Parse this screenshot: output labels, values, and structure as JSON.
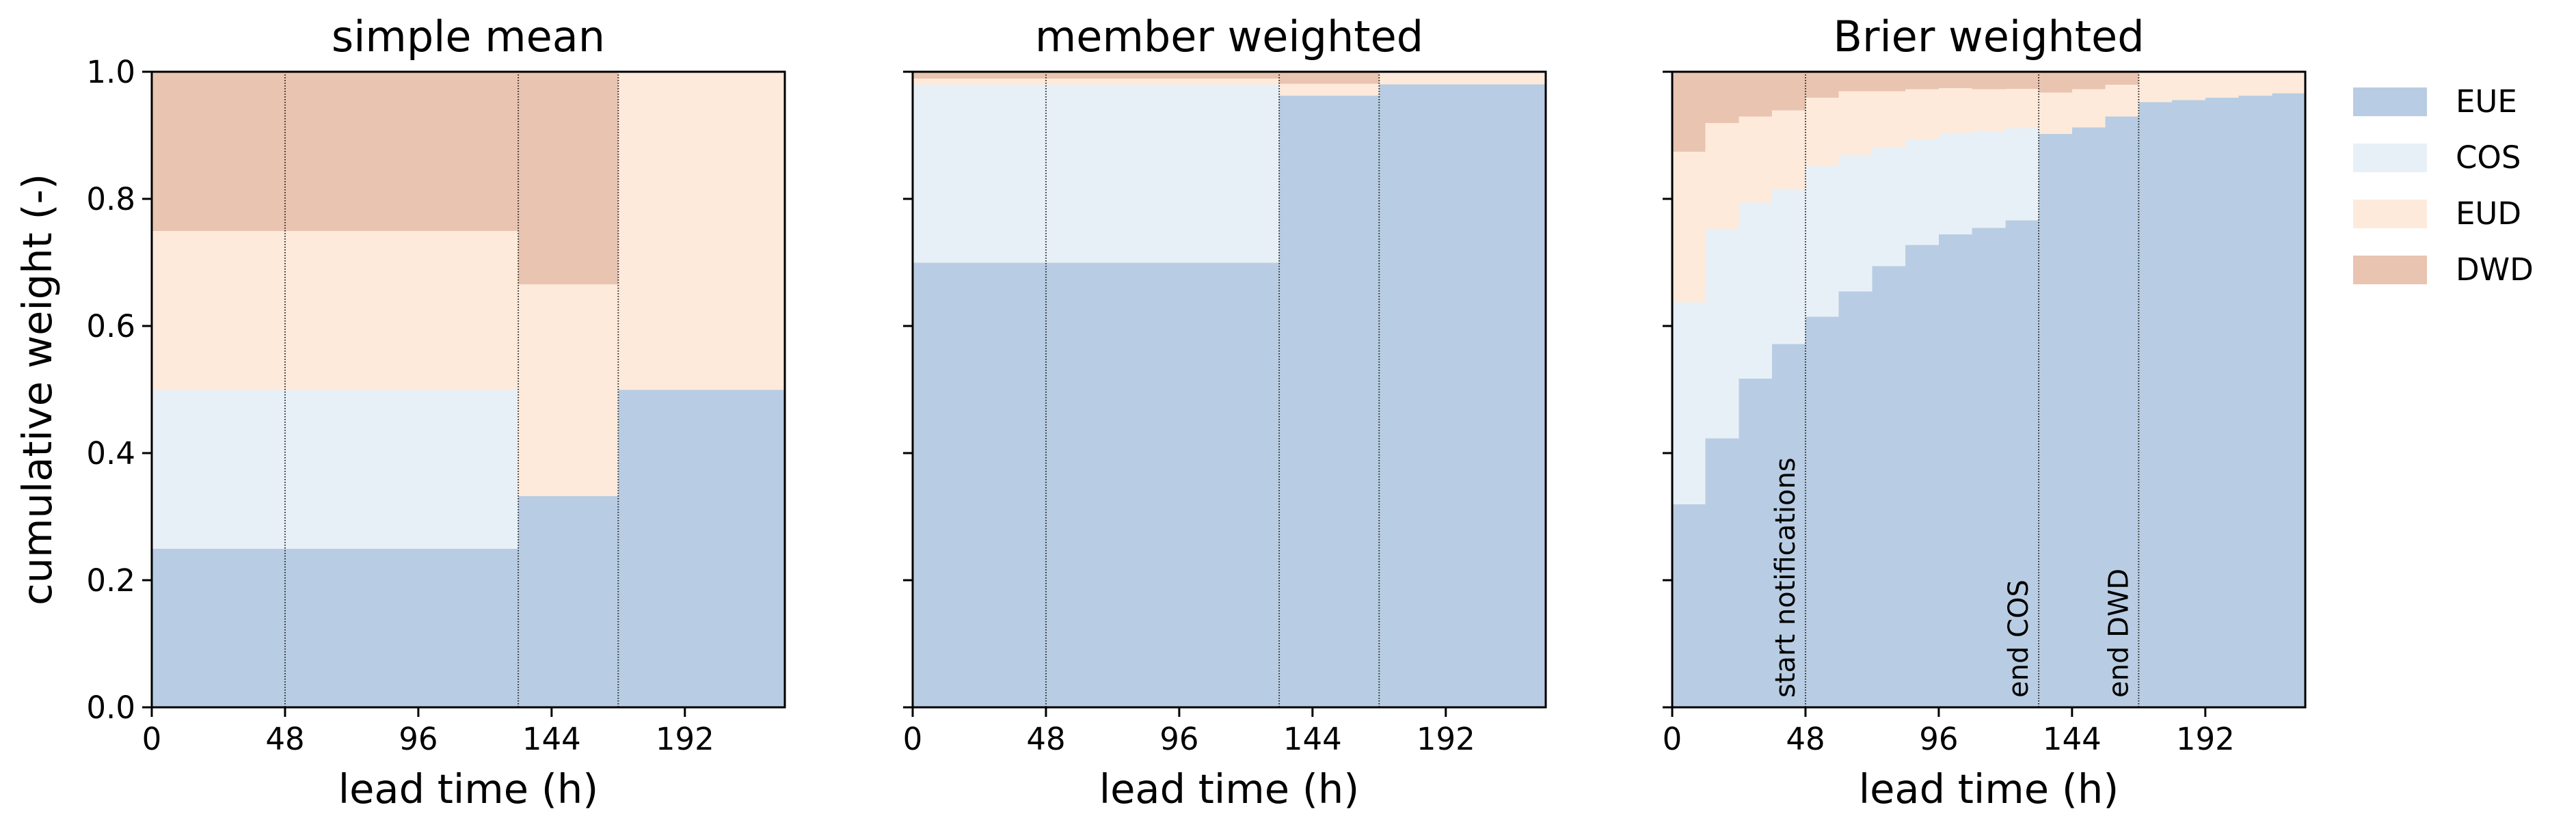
{
  "colors": {
    "EUE": "#b8cde3",
    "COS": "#e8f0f7",
    "EUD": "#fdeadb",
    "DWD": "#e9c4b1"
  },
  "legend": {
    "placement": "right",
    "entries": [
      "EUE",
      "COS",
      "EUD",
      "DWD"
    ]
  },
  "chart_data": [
    {
      "type": "area",
      "title": "simple mean",
      "xlabel": "lead time (h)",
      "ylabel": "cumulative weight (-)",
      "xlim": [
        0,
        228
      ],
      "ylim": [
        0,
        1
      ],
      "xticks": [
        "0",
        "48",
        "96",
        "144",
        "192"
      ],
      "yticks": [
        "0.0",
        "0.2",
        "0.4",
        "0.6",
        "0.8",
        "1.0"
      ],
      "grid": false,
      "vlines": [
        48,
        132,
        168
      ],
      "series": [
        {
          "name": "EUE",
          "steps": [
            [
              0,
              132,
              0.25
            ],
            [
              132,
              168,
              0.333
            ],
            [
              168,
              228,
              0.5
            ]
          ]
        },
        {
          "name": "COS",
          "steps": [
            [
              0,
              132,
              0.25
            ],
            [
              132,
              168,
              0.0
            ],
            [
              168,
              228,
              0.0
            ]
          ]
        },
        {
          "name": "EUD",
          "steps": [
            [
              0,
              132,
              0.25
            ],
            [
              132,
              168,
              0.333
            ],
            [
              168,
              228,
              0.5
            ]
          ]
        },
        {
          "name": "DWD",
          "steps": [
            [
              0,
              132,
              0.25
            ],
            [
              132,
              168,
              0.334
            ],
            [
              168,
              228,
              0.0
            ]
          ]
        }
      ]
    },
    {
      "type": "area",
      "title": "member weighted",
      "xlabel": "lead time (h)",
      "ylabel": "",
      "xlim": [
        0,
        228
      ],
      "ylim": [
        0,
        1
      ],
      "xticks": [
        "0",
        "48",
        "96",
        "144",
        "192"
      ],
      "yticks": [],
      "grid": false,
      "vlines": [
        48,
        132,
        168
      ],
      "series": [
        {
          "name": "EUE",
          "steps": [
            [
              0,
              132,
              0.7
            ],
            [
              132,
              168,
              0.963
            ],
            [
              168,
              228,
              0.981
            ]
          ]
        },
        {
          "name": "COS",
          "steps": [
            [
              0,
              132,
              0.28
            ],
            [
              132,
              168,
              0.0
            ],
            [
              168,
              228,
              0.0
            ]
          ]
        },
        {
          "name": "EUD",
          "steps": [
            [
              0,
              132,
              0.01
            ],
            [
              132,
              168,
              0.019
            ],
            [
              168,
              228,
              0.019
            ]
          ]
        },
        {
          "name": "DWD",
          "steps": [
            [
              0,
              132,
              0.01
            ],
            [
              132,
              168,
              0.018
            ],
            [
              168,
              228,
              0.0
            ]
          ]
        }
      ]
    },
    {
      "type": "area",
      "title": "Brier weighted",
      "xlabel": "lead time (h)",
      "ylabel": "",
      "xlim": [
        0,
        228
      ],
      "ylim": [
        0,
        1
      ],
      "xticks": [
        "0",
        "48",
        "96",
        "144",
        "192"
      ],
      "yticks": [],
      "grid": false,
      "vlines": [
        48,
        132,
        168
      ],
      "annotations": [
        {
          "text": "start notifications",
          "x": 48
        },
        {
          "text": "end COS",
          "x": 132
        },
        {
          "text": "end DWD",
          "x": 168
        }
      ],
      "series": [
        {
          "name": "EUE",
          "steps": [
            [
              0,
              12,
              0.32
            ],
            [
              12,
              24,
              0.424
            ],
            [
              24,
              36,
              0.518
            ],
            [
              36,
              48,
              0.572
            ],
            [
              48,
              60,
              0.615
            ],
            [
              60,
              72,
              0.655
            ],
            [
              72,
              84,
              0.695
            ],
            [
              84,
              96,
              0.728
            ],
            [
              96,
              108,
              0.745
            ],
            [
              108,
              120,
              0.755
            ],
            [
              120,
              132,
              0.767
            ],
            [
              132,
              144,
              0.903
            ],
            [
              144,
              156,
              0.913
            ],
            [
              156,
              168,
              0.93
            ],
            [
              168,
              180,
              0.953
            ],
            [
              180,
              192,
              0.956
            ],
            [
              192,
              204,
              0.96
            ],
            [
              204,
              216,
              0.963
            ],
            [
              216,
              228,
              0.967
            ]
          ]
        },
        {
          "name": "COS",
          "steps": [
            [
              0,
              12,
              0.318
            ],
            [
              12,
              24,
              0.328
            ],
            [
              24,
              36,
              0.277
            ],
            [
              36,
              48,
              0.243
            ],
            [
              48,
              60,
              0.237
            ],
            [
              60,
              72,
              0.215
            ],
            [
              72,
              84,
              0.187
            ],
            [
              84,
              96,
              0.167
            ],
            [
              96,
              108,
              0.158
            ],
            [
              108,
              120,
              0.152
            ],
            [
              120,
              132,
              0.145
            ],
            [
              132,
              144,
              0
            ],
            [
              144,
              156,
              0
            ],
            [
              156,
              168,
              0
            ],
            [
              168,
              180,
              0
            ],
            [
              180,
              192,
              0
            ],
            [
              192,
              204,
              0
            ],
            [
              204,
              216,
              0
            ],
            [
              216,
              228,
              0
            ]
          ]
        },
        {
          "name": "EUD",
          "steps": [
            [
              0,
              12,
              0.237
            ],
            [
              12,
              24,
              0.168
            ],
            [
              24,
              36,
              0.135
            ],
            [
              36,
              48,
              0.125
            ],
            [
              48,
              60,
              0.108
            ],
            [
              60,
              72,
              0.1
            ],
            [
              72,
              84,
              0.088
            ],
            [
              84,
              96,
              0.078
            ],
            [
              96,
              108,
              0.072
            ],
            [
              108,
              120,
              0.066
            ],
            [
              120,
              132,
              0.062
            ],
            [
              132,
              144,
              0.065
            ],
            [
              144,
              156,
              0.06
            ],
            [
              156,
              168,
              0.05
            ],
            [
              168,
              180,
              0.047
            ],
            [
              180,
              192,
              0.044
            ],
            [
              192,
              204,
              0.04
            ],
            [
              204,
              216,
              0.037
            ],
            [
              216,
              228,
              0.033
            ]
          ]
        },
        {
          "name": "DWD",
          "steps": [
            [
              0,
              12,
              0.125
            ],
            [
              12,
              24,
              0.08
            ],
            [
              24,
              36,
              0.07
            ],
            [
              36,
              48,
              0.06
            ],
            [
              48,
              60,
              0.04
            ],
            [
              60,
              72,
              0.03
            ],
            [
              72,
              84,
              0.03
            ],
            [
              84,
              96,
              0.027
            ],
            [
              96,
              108,
              0.025
            ],
            [
              108,
              120,
              0.027
            ],
            [
              120,
              132,
              0.026
            ],
            [
              132,
              144,
              0.032
            ],
            [
              144,
              156,
              0.027
            ],
            [
              156,
              168,
              0.02
            ],
            [
              168,
              180,
              0
            ],
            [
              180,
              192,
              0
            ],
            [
              192,
              204,
              0
            ],
            [
              204,
              216,
              0
            ],
            [
              216,
              228,
              0
            ]
          ]
        }
      ]
    }
  ]
}
